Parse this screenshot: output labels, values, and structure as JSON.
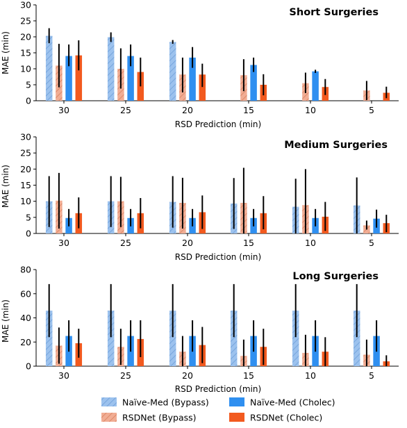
{
  "colors": {
    "naive_bypass": "#9cc2ee",
    "naive_bypass_hatch": "#6f9fd8",
    "rsd_bypass": "#f1ad94",
    "rsd_bypass_hatch": "#d9825f",
    "naive_cholec": "#2f8ff0",
    "rsd_cholec": "#f25a1f",
    "error_bar": "#000000"
  },
  "legend": {
    "items": [
      {
        "label": "Naïve-Med (Bypass)",
        "series": 0
      },
      {
        "label": "RSDNet (Bypass)",
        "series": 1
      },
      {
        "label": "Naïve-Med (Cholec)",
        "series": 2
      },
      {
        "label": "RSDNet (Cholec)",
        "series": 3
      }
    ]
  },
  "chart_data": [
    {
      "type": "bar",
      "title": "Short Surgeries",
      "xlabel": "RSD Prediction (min)",
      "ylabel": "MAE (min)",
      "ylim": [
        0,
        30
      ],
      "yticks": [
        0,
        5,
        10,
        15,
        20,
        25,
        30
      ],
      "categories": [
        "30",
        "25",
        "20",
        "15",
        "10",
        "5"
      ],
      "series": [
        {
          "name": "Naïve-Med (Bypass)",
          "values": [
            20.3,
            19.9,
            18.4,
            null,
            null,
            null
          ],
          "err_low": [
            18.0,
            18.4,
            17.8,
            null,
            null,
            null
          ],
          "err_high": [
            22.7,
            21.4,
            19.0,
            null,
            null,
            null
          ]
        },
        {
          "name": "RSDNet (Bypass)",
          "values": [
            11.0,
            10.0,
            8.2,
            8.0,
            5.5,
            3.2
          ],
          "err_low": [
            4.2,
            3.8,
            2.6,
            3.0,
            2.4,
            0.2
          ],
          "err_high": [
            17.8,
            16.4,
            13.5,
            13.0,
            8.8,
            6.2
          ]
        },
        {
          "name": "Naïve-Med (Cholec)",
          "values": [
            14.0,
            14.0,
            13.5,
            11.2,
            9.2,
            null
          ],
          "err_low": [
            10.8,
            10.8,
            10.3,
            9.0,
            8.7,
            null
          ],
          "err_high": [
            17.6,
            17.6,
            16.8,
            13.5,
            9.7,
            null
          ]
        },
        {
          "name": "RSDNet (Cholec)",
          "values": [
            14.2,
            9.0,
            8.2,
            5.0,
            4.3,
            2.5
          ],
          "err_low": [
            9.5,
            4.5,
            4.3,
            1.7,
            1.8,
            0.8
          ],
          "err_high": [
            18.9,
            13.5,
            11.6,
            8.3,
            6.8,
            4.4
          ]
        }
      ]
    },
    {
      "type": "bar",
      "title": "Medium Surgeries",
      "xlabel": "RSD Prediction (min)",
      "ylabel": "MAE (min)",
      "ylim": [
        0,
        30
      ],
      "yticks": [
        0,
        5,
        10,
        15,
        20,
        25,
        30
      ],
      "categories": [
        "30",
        "25",
        "20",
        "15",
        "10",
        "5"
      ],
      "series": [
        {
          "name": "Naïve-Med (Bypass)",
          "values": [
            10.0,
            10.0,
            9.8,
            9.3,
            8.3,
            8.7
          ],
          "err_low": [
            2.0,
            2.0,
            1.8,
            1.4,
            0.0,
            0.0
          ],
          "err_high": [
            17.8,
            17.8,
            17.8,
            17.2,
            17.0,
            17.4
          ]
        },
        {
          "name": "RSDNet (Bypass)",
          "values": [
            10.2,
            10.0,
            9.5,
            9.5,
            8.8,
            2.5
          ],
          "err_low": [
            1.5,
            2.0,
            1.5,
            0.0,
            0.0,
            1.2
          ],
          "err_high": [
            18.8,
            17.6,
            17.3,
            20.4,
            20.0,
            4.0
          ]
        },
        {
          "name": "Naïve-Med (Cholec)",
          "values": [
            4.8,
            4.8,
            4.8,
            4.8,
            4.8,
            4.6
          ],
          "err_low": [
            2.2,
            2.2,
            2.2,
            2.2,
            2.2,
            1.8
          ],
          "err_high": [
            7.6,
            7.6,
            7.6,
            7.6,
            7.6,
            7.4
          ]
        },
        {
          "name": "RSDNet (Cholec)",
          "values": [
            6.3,
            6.3,
            6.6,
            6.3,
            5.2,
            3.2
          ],
          "err_low": [
            1.6,
            1.6,
            1.4,
            1.3,
            0.8,
            0.4
          ],
          "err_high": [
            11.2,
            11.0,
            11.8,
            11.6,
            9.8,
            5.8
          ]
        }
      ]
    },
    {
      "type": "bar",
      "title": "Long Surgeries",
      "xlabel": "RSD Prediction (min)",
      "ylabel": "MAE (min)",
      "ylim": [
        0,
        80
      ],
      "yticks": [
        0,
        20,
        40,
        60,
        80
      ],
      "categories": [
        "30",
        "25",
        "20",
        "15",
        "10",
        "5"
      ],
      "series": [
        {
          "name": "Naïve-Med (Bypass)",
          "values": [
            46.0,
            46.0,
            46.0,
            46.0,
            46.0,
            46.0
          ],
          "err_low": [
            24.0,
            24.0,
            24.0,
            24.0,
            24.0,
            24.0
          ],
          "err_high": [
            68.0,
            68.0,
            68.0,
            68.0,
            68.0,
            68.0
          ]
        },
        {
          "name": "RSDNet (Bypass)",
          "values": [
            17.0,
            16.0,
            12.0,
            8.5,
            11.0,
            9.5
          ],
          "err_low": [
            2.0,
            1.0,
            0.0,
            0.0,
            0.0,
            0.0
          ],
          "err_high": [
            32.0,
            31.0,
            25.0,
            22.0,
            26.0,
            22.0
          ]
        },
        {
          "name": "Naïve-Med (Cholec)",
          "values": [
            25.0,
            25.0,
            25.0,
            25.0,
            25.0,
            25.0
          ],
          "err_low": [
            12.0,
            12.0,
            12.0,
            12.0,
            12.0,
            12.0
          ],
          "err_high": [
            38.0,
            38.0,
            38.0,
            38.0,
            38.0,
            38.0
          ]
        },
        {
          "name": "RSDNet (Cholec)",
          "values": [
            19.0,
            22.5,
            17.5,
            16.0,
            12.0,
            4.0
          ],
          "err_low": [
            7.0,
            7.5,
            2.5,
            1.0,
            0.0,
            0.0
          ],
          "err_high": [
            31.0,
            38.0,
            32.5,
            31.0,
            24.0,
            9.0
          ]
        }
      ]
    }
  ]
}
